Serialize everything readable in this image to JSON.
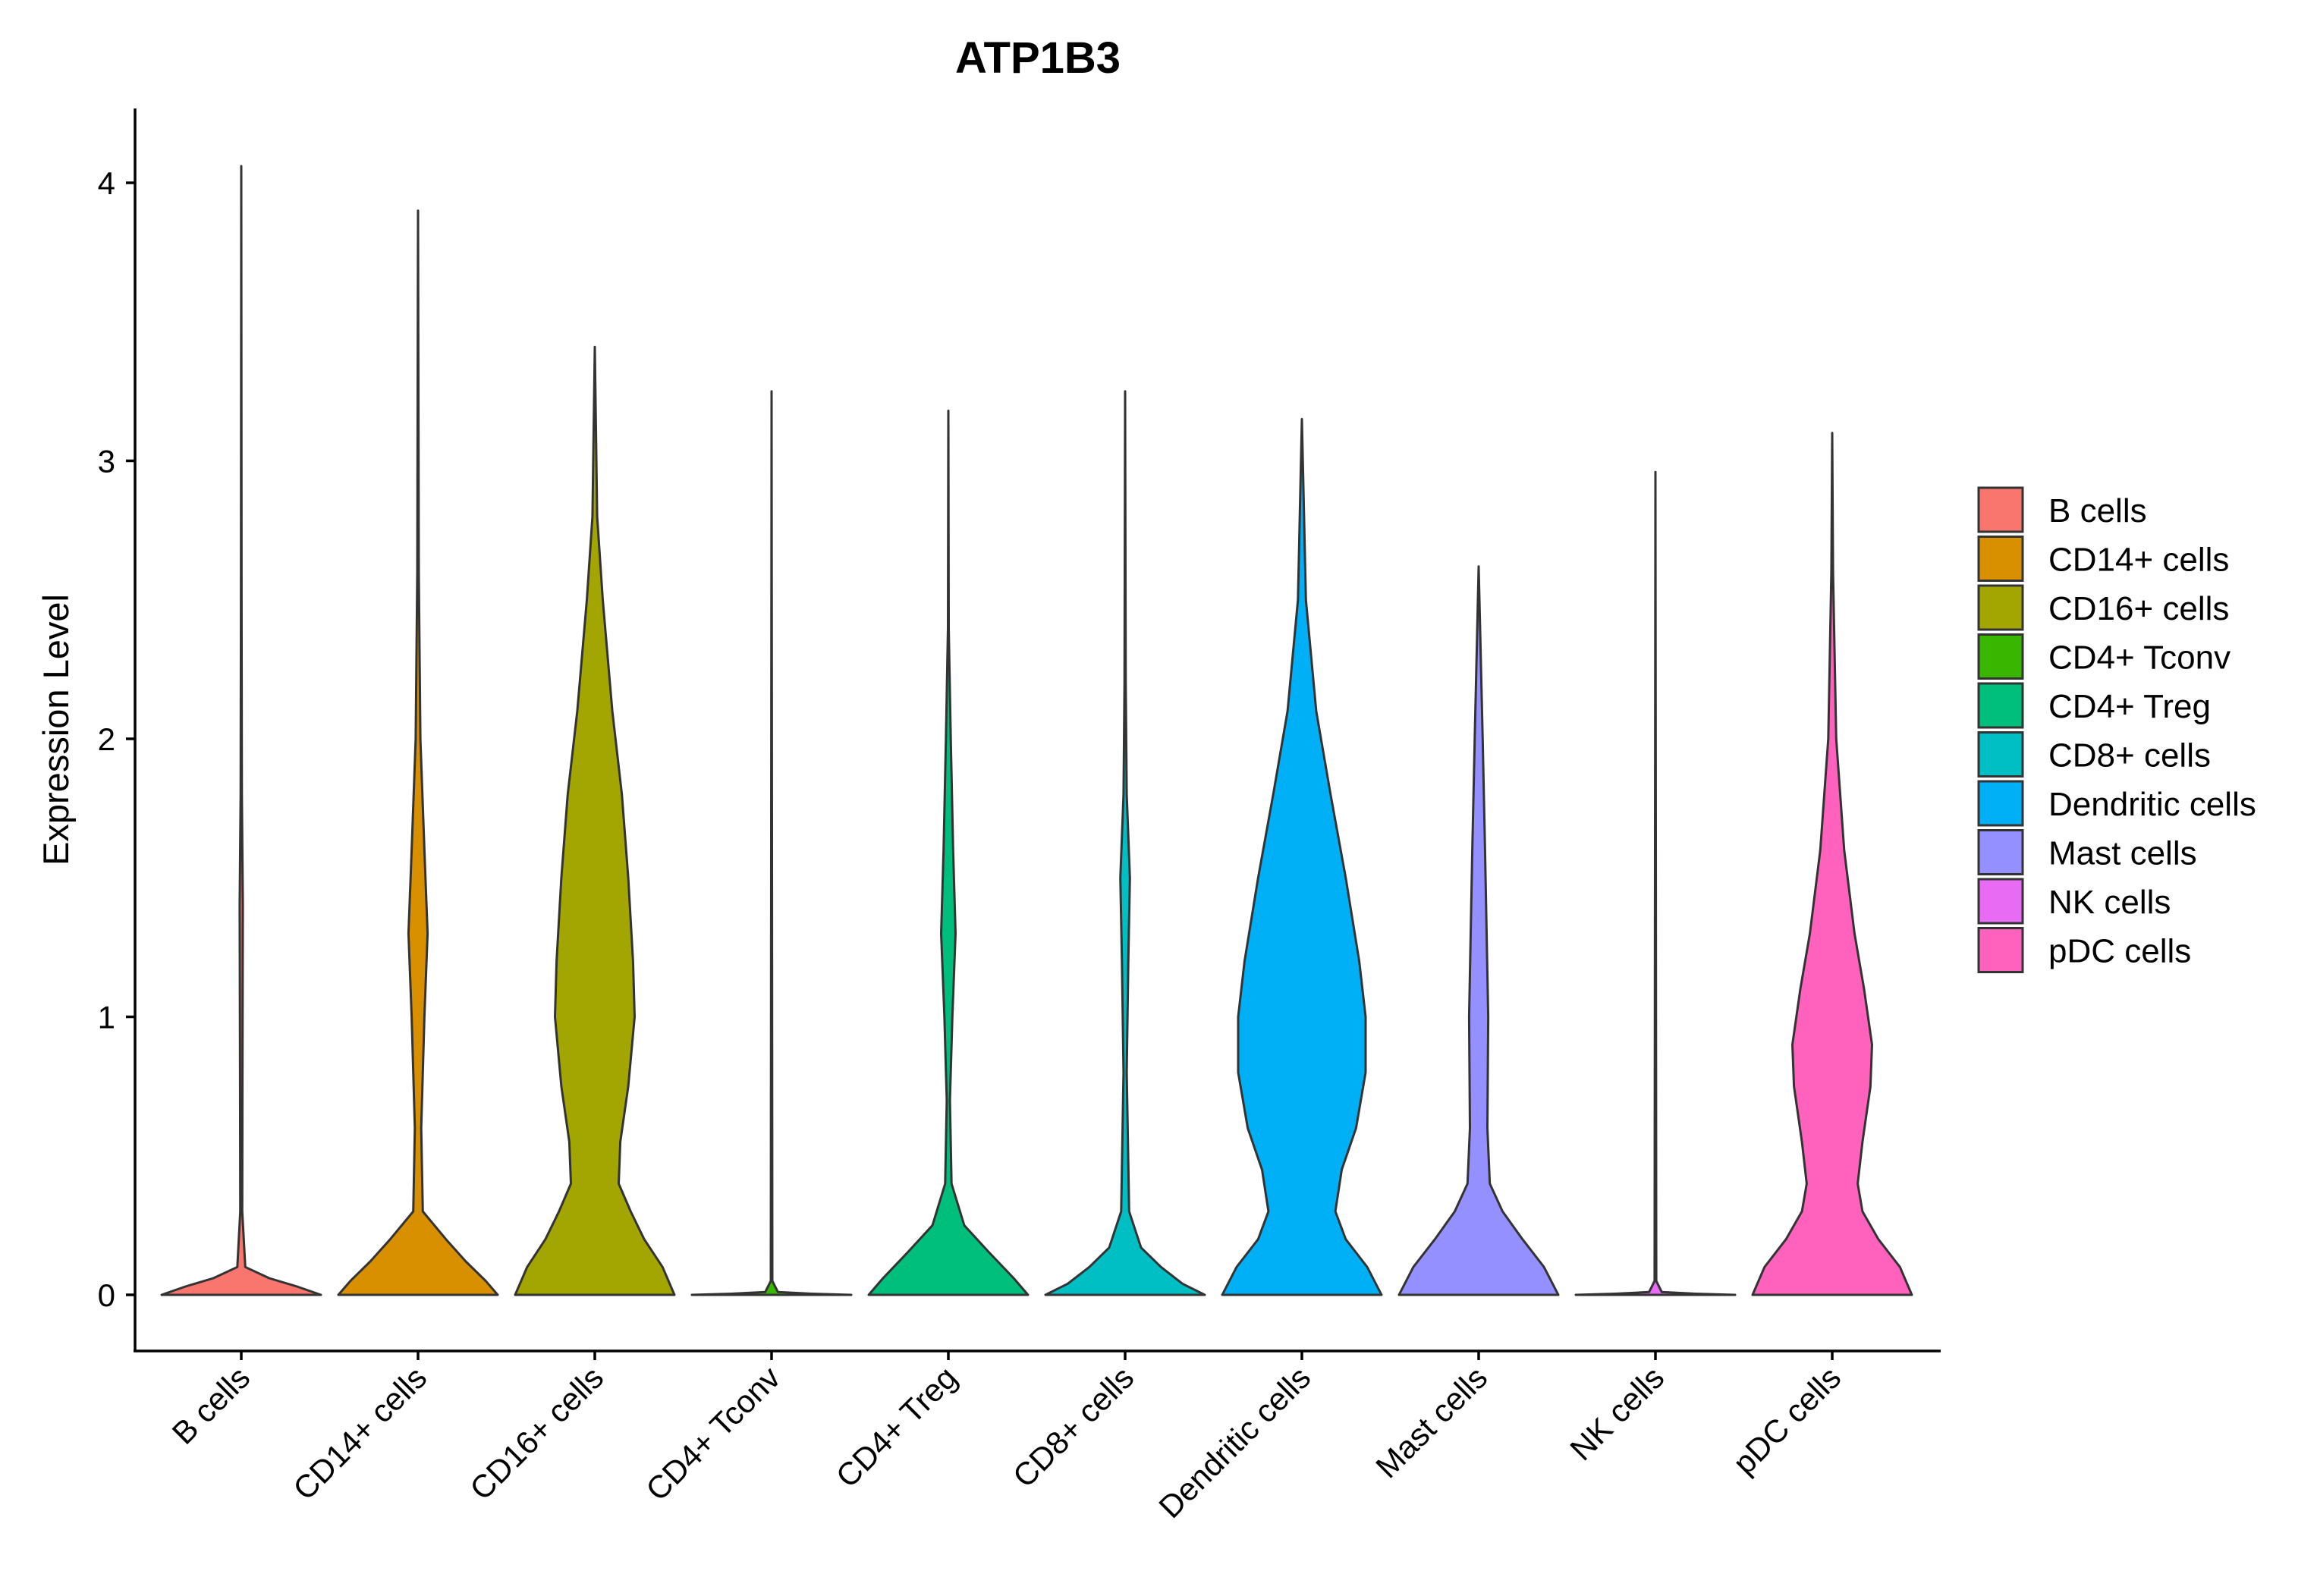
{
  "chart_data": {
    "type": "violin",
    "title": "ATP1B3",
    "xlabel": "",
    "ylabel": "Expression Level",
    "ylim": [
      -0.2,
      4.28
    ],
    "yticks": [
      0,
      1,
      2,
      3,
      4
    ],
    "categories": [
      "B cells",
      "CD14+ cells",
      "CD16+ cells",
      "CD4+ Tconv",
      "CD4+ Treg",
      "CD8+ cells",
      "Dendritic cells",
      "Mast cells",
      "NK cells",
      "pDC cells"
    ],
    "colors": [
      "#F8766D",
      "#D89000",
      "#A3A500",
      "#39B600",
      "#00BF7D",
      "#00BFC4",
      "#00B0F6",
      "#9590FF",
      "#E76BF3",
      "#FF62BC"
    ],
    "series": [
      {
        "name": "B cells",
        "max": 4.06,
        "density": [
          [
            0,
            1.0
          ],
          [
            0.03,
            0.7
          ],
          [
            0.06,
            0.35
          ],
          [
            0.1,
            0.05
          ],
          [
            0.3,
            0.012
          ],
          [
            0.8,
            0.015
          ],
          [
            1.4,
            0.02
          ],
          [
            1.8,
            0.008
          ],
          [
            2.5,
            0.004
          ],
          [
            4.06,
            0.0
          ]
        ]
      },
      {
        "name": "CD14+ cells",
        "max": 3.9,
        "density": [
          [
            0,
            1.0
          ],
          [
            0.05,
            0.85
          ],
          [
            0.12,
            0.6
          ],
          [
            0.2,
            0.35
          ],
          [
            0.3,
            0.06
          ],
          [
            0.6,
            0.04
          ],
          [
            1.0,
            0.08
          ],
          [
            1.3,
            0.12
          ],
          [
            1.6,
            0.08
          ],
          [
            2.0,
            0.03
          ],
          [
            2.6,
            0.01
          ],
          [
            3.9,
            0.0
          ]
        ]
      },
      {
        "name": "CD16+ cells",
        "max": 3.41,
        "density": [
          [
            0,
            1.0
          ],
          [
            0.1,
            0.85
          ],
          [
            0.2,
            0.62
          ],
          [
            0.3,
            0.45
          ],
          [
            0.4,
            0.3
          ],
          [
            0.55,
            0.32
          ],
          [
            0.75,
            0.42
          ],
          [
            1.0,
            0.5
          ],
          [
            1.2,
            0.48
          ],
          [
            1.5,
            0.42
          ],
          [
            1.8,
            0.34
          ],
          [
            2.1,
            0.22
          ],
          [
            2.5,
            0.1
          ],
          [
            2.8,
            0.03
          ],
          [
            3.41,
            0.0
          ]
        ]
      },
      {
        "name": "CD4+ Tconv",
        "max": 3.25,
        "density": [
          [
            0,
            1.0
          ],
          [
            0.004,
            0.5
          ],
          [
            0.01,
            0.08
          ],
          [
            0.05,
            0.01
          ],
          [
            3.25,
            0.0
          ]
        ]
      },
      {
        "name": "CD4+ Treg",
        "max": 3.18,
        "density": [
          [
            0,
            1.0
          ],
          [
            0.06,
            0.82
          ],
          [
            0.15,
            0.52
          ],
          [
            0.25,
            0.2
          ],
          [
            0.4,
            0.04
          ],
          [
            0.7,
            0.02
          ],
          [
            1.0,
            0.05
          ],
          [
            1.3,
            0.09
          ],
          [
            1.6,
            0.06
          ],
          [
            2.0,
            0.03
          ],
          [
            2.4,
            0.005
          ],
          [
            3.18,
            0.0
          ]
        ]
      },
      {
        "name": "CD8+ cells",
        "max": 3.25,
        "density": [
          [
            0,
            1.0
          ],
          [
            0.04,
            0.72
          ],
          [
            0.1,
            0.45
          ],
          [
            0.17,
            0.2
          ],
          [
            0.3,
            0.05
          ],
          [
            0.8,
            0.02
          ],
          [
            1.2,
            0.04
          ],
          [
            1.5,
            0.06
          ],
          [
            1.8,
            0.02
          ],
          [
            2.2,
            0.008
          ],
          [
            3.25,
            0.0
          ]
        ]
      },
      {
        "name": "Dendritic cells",
        "max": 3.15,
        "density": [
          [
            0,
            1.0
          ],
          [
            0.1,
            0.82
          ],
          [
            0.2,
            0.55
          ],
          [
            0.3,
            0.42
          ],
          [
            0.45,
            0.5
          ],
          [
            0.6,
            0.68
          ],
          [
            0.8,
            0.8
          ],
          [
            1.0,
            0.8
          ],
          [
            1.2,
            0.72
          ],
          [
            1.5,
            0.55
          ],
          [
            1.8,
            0.36
          ],
          [
            2.1,
            0.18
          ],
          [
            2.5,
            0.05
          ],
          [
            3.15,
            0.0
          ]
        ]
      },
      {
        "name": "Mast cells",
        "max": 2.62,
        "density": [
          [
            0,
            1.0
          ],
          [
            0.1,
            0.82
          ],
          [
            0.2,
            0.55
          ],
          [
            0.3,
            0.3
          ],
          [
            0.4,
            0.14
          ],
          [
            0.6,
            0.11
          ],
          [
            1.0,
            0.12
          ],
          [
            1.3,
            0.1
          ],
          [
            1.6,
            0.08
          ],
          [
            2.0,
            0.05
          ],
          [
            2.62,
            0.0
          ]
        ]
      },
      {
        "name": "NK cells",
        "max": 2.96,
        "density": [
          [
            0,
            1.0
          ],
          [
            0.004,
            0.5
          ],
          [
            0.01,
            0.08
          ],
          [
            0.05,
            0.01
          ],
          [
            2.96,
            0.0
          ]
        ]
      },
      {
        "name": "pDC cells",
        "max": 3.1,
        "density": [
          [
            0,
            1.0
          ],
          [
            0.1,
            0.85
          ],
          [
            0.2,
            0.58
          ],
          [
            0.3,
            0.38
          ],
          [
            0.4,
            0.32
          ],
          [
            0.55,
            0.38
          ],
          [
            0.75,
            0.48
          ],
          [
            0.9,
            0.5
          ],
          [
            1.1,
            0.4
          ],
          [
            1.3,
            0.28
          ],
          [
            1.6,
            0.15
          ],
          [
            2.0,
            0.05
          ],
          [
            2.6,
            0.01
          ],
          [
            3.1,
            0.0
          ]
        ]
      }
    ],
    "legend": {
      "position": "right",
      "entries": [
        "B cells",
        "CD14+ cells",
        "CD16+ cells",
        "CD4+ Tconv",
        "CD4+ Treg",
        "CD8+ cells",
        "Dendritic cells",
        "Mast cells",
        "NK cells",
        "pDC cells"
      ]
    },
    "grid": false
  }
}
